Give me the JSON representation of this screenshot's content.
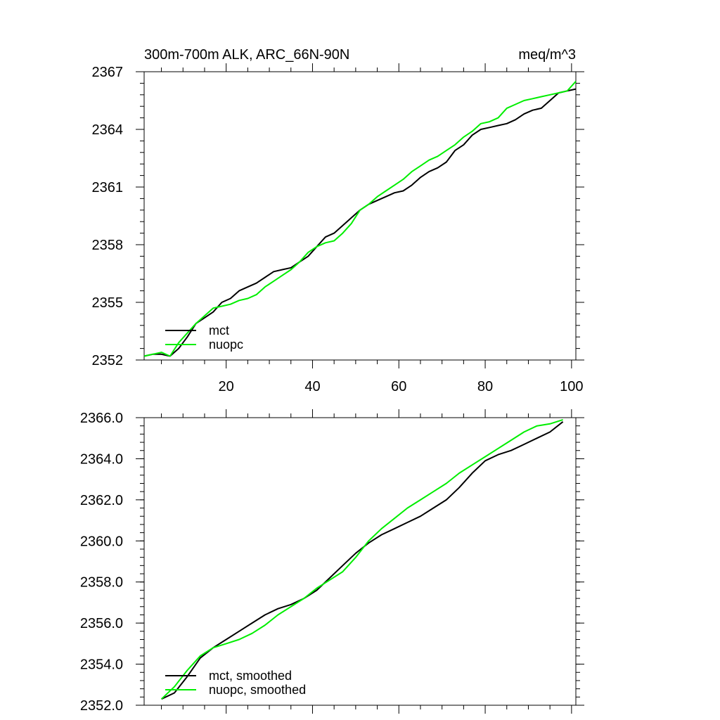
{
  "chart_data": [
    {
      "type": "line",
      "title_left": "300m-700m ALK, ARC_66N-90N",
      "title_right": "meq/m^3",
      "xlabel": "",
      "ylabel": "",
      "xlim": [
        1,
        101
      ],
      "ylim": [
        2352,
        2367
      ],
      "xticks": [
        20,
        40,
        60,
        80,
        100
      ],
      "xtick_labels": [
        "20",
        "40",
        "60",
        "80",
        "100"
      ],
      "yticks": [
        2352,
        2355,
        2358,
        2361,
        2364,
        2367
      ],
      "ytick_labels": [
        "2352",
        "2355",
        "2358",
        "2361",
        "2364",
        "2367"
      ],
      "legend_position": "bottom-left",
      "series": [
        {
          "name": "mct",
          "color": "#000000",
          "x": [
            1,
            3,
            5,
            7,
            9,
            11,
            13,
            15,
            17,
            19,
            21,
            23,
            25,
            27,
            29,
            31,
            33,
            35,
            37,
            39,
            41,
            43,
            45,
            47,
            49,
            51,
            53,
            55,
            57,
            59,
            61,
            63,
            65,
            67,
            69,
            71,
            73,
            75,
            77,
            79,
            81,
            83,
            85,
            87,
            89,
            91,
            93,
            95,
            97,
            99,
            101
          ],
          "y": [
            2352.2,
            2352.3,
            2352.3,
            2352.2,
            2352.6,
            2353.2,
            2353.9,
            2354.2,
            2354.5,
            2355.0,
            2355.2,
            2355.6,
            2355.8,
            2356.0,
            2356.3,
            2356.6,
            2356.7,
            2356.8,
            2357.1,
            2357.4,
            2357.9,
            2358.4,
            2358.6,
            2359.0,
            2359.4,
            2359.8,
            2360.1,
            2360.3,
            2360.5,
            2360.7,
            2360.8,
            2361.1,
            2361.5,
            2361.8,
            2362.0,
            2362.3,
            2362.9,
            2363.2,
            2363.7,
            2364.0,
            2364.1,
            2364.2,
            2364.3,
            2364.5,
            2364.8,
            2365.0,
            2365.1,
            2365.5,
            2365.9,
            2366.0,
            2366.1
          ]
        },
        {
          "name": "nuopc",
          "color": "#00ee00",
          "x": [
            1,
            3,
            5,
            7,
            9,
            11,
            13,
            15,
            17,
            19,
            21,
            23,
            25,
            27,
            29,
            31,
            33,
            35,
            37,
            39,
            41,
            43,
            45,
            47,
            49,
            51,
            53,
            55,
            57,
            59,
            61,
            63,
            65,
            67,
            69,
            71,
            73,
            75,
            77,
            79,
            81,
            83,
            85,
            87,
            89,
            91,
            93,
            95,
            97,
            99,
            101
          ],
          "y": [
            2352.2,
            2352.3,
            2352.4,
            2352.2,
            2352.9,
            2353.4,
            2353.9,
            2354.3,
            2354.7,
            2354.8,
            2354.9,
            2355.1,
            2355.2,
            2355.4,
            2355.8,
            2356.1,
            2356.4,
            2356.7,
            2357.1,
            2357.6,
            2357.9,
            2358.1,
            2358.2,
            2358.6,
            2359.1,
            2359.8,
            2360.1,
            2360.5,
            2360.8,
            2361.1,
            2361.4,
            2361.8,
            2362.1,
            2362.4,
            2362.6,
            2362.9,
            2363.2,
            2363.6,
            2363.9,
            2364.3,
            2364.4,
            2364.6,
            2365.1,
            2365.3,
            2365.5,
            2365.6,
            2365.7,
            2365.8,
            2365.9,
            2366.0,
            2366.5
          ]
        }
      ]
    },
    {
      "type": "line",
      "title_left": "",
      "title_right": "",
      "xlabel": "",
      "ylabel": "",
      "xlim": [
        1,
        101
      ],
      "ylim": [
        2352.0,
        2366.0
      ],
      "xticks": [
        20,
        40,
        60,
        80,
        100
      ],
      "xtick_labels": [],
      "yticks": [
        2352.0,
        2354.0,
        2356.0,
        2358.0,
        2360.0,
        2362.0,
        2364.0,
        2366.0
      ],
      "ytick_labels": [
        "2352.0",
        "2354.0",
        "2356.0",
        "2358.0",
        "2360.0",
        "2362.0",
        "2364.0",
        "2366.0"
      ],
      "legend_position": "bottom-left",
      "series": [
        {
          "name": "mct, smoothed",
          "color": "#000000",
          "x": [
            5,
            8,
            11,
            14,
            17,
            20,
            23,
            26,
            29,
            32,
            35,
            38,
            41,
            44,
            47,
            50,
            53,
            56,
            59,
            62,
            65,
            68,
            71,
            74,
            77,
            80,
            83,
            86,
            89,
            92,
            95,
            98
          ],
          "y": [
            2352.3,
            2352.6,
            2353.4,
            2354.3,
            2354.8,
            2355.2,
            2355.6,
            2356.0,
            2356.4,
            2356.7,
            2356.9,
            2357.2,
            2357.6,
            2358.2,
            2358.8,
            2359.4,
            2359.9,
            2360.3,
            2360.6,
            2360.9,
            2361.2,
            2361.6,
            2362.0,
            2362.6,
            2363.3,
            2363.9,
            2364.2,
            2364.4,
            2364.7,
            2365.0,
            2365.3,
            2365.8
          ]
        },
        {
          "name": "nuopc, smoothed",
          "color": "#00ee00",
          "x": [
            5,
            8,
            11,
            14,
            17,
            20,
            23,
            26,
            29,
            32,
            35,
            38,
            41,
            44,
            47,
            50,
            53,
            56,
            59,
            62,
            65,
            68,
            71,
            74,
            77,
            80,
            83,
            86,
            89,
            92,
            95,
            98
          ],
          "y": [
            2352.3,
            2352.9,
            2353.7,
            2354.4,
            2354.8,
            2355.0,
            2355.2,
            2355.5,
            2355.9,
            2356.4,
            2356.8,
            2357.2,
            2357.7,
            2358.1,
            2358.5,
            2359.2,
            2360.0,
            2360.6,
            2361.1,
            2361.6,
            2362.0,
            2362.4,
            2362.8,
            2363.3,
            2363.7,
            2364.1,
            2364.5,
            2364.9,
            2365.3,
            2365.6,
            2365.7,
            2365.9
          ]
        }
      ]
    }
  ]
}
